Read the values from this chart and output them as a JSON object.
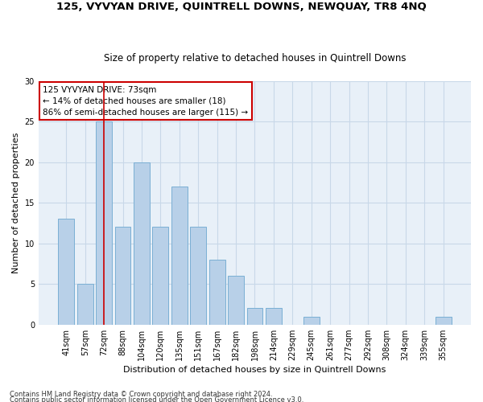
{
  "title": "125, VYVYAN DRIVE, QUINTRELL DOWNS, NEWQUAY, TR8 4NQ",
  "subtitle": "Size of property relative to detached houses in Quintrell Downs",
  "xlabel": "Distribution of detached houses by size in Quintrell Downs",
  "ylabel": "Number of detached properties",
  "categories": [
    "41sqm",
    "57sqm",
    "72sqm",
    "88sqm",
    "104sqm",
    "120sqm",
    "135sqm",
    "151sqm",
    "167sqm",
    "182sqm",
    "198sqm",
    "214sqm",
    "229sqm",
    "245sqm",
    "261sqm",
    "277sqm",
    "292sqm",
    "308sqm",
    "324sqm",
    "339sqm",
    "355sqm"
  ],
  "values": [
    13,
    5,
    25,
    12,
    20,
    12,
    17,
    12,
    8,
    6,
    2,
    2,
    0,
    1,
    0,
    0,
    0,
    0,
    0,
    0,
    1
  ],
  "bar_color": "#b8d0e8",
  "bar_edge_color": "#7aafd4",
  "property_line_x": 2.0,
  "annotation_text": "125 VYVYAN DRIVE: 73sqm\n← 14% of detached houses are smaller (18)\n86% of semi-detached houses are larger (115) →",
  "annotation_box_color": "#ffffff",
  "annotation_box_edge": "#cc0000",
  "vline_color": "#cc0000",
  "grid_color": "#c8d8e8",
  "bg_color": "#e8f0f8",
  "footer_line1": "Contains HM Land Registry data © Crown copyright and database right 2024.",
  "footer_line2": "Contains public sector information licensed under the Open Government Licence v3.0.",
  "ylim": [
    0,
    30
  ],
  "title_fontsize": 9.5,
  "subtitle_fontsize": 8.5,
  "ylabel_fontsize": 8,
  "xlabel_fontsize": 8,
  "tick_fontsize": 7,
  "annot_fontsize": 7.5,
  "footer_fontsize": 6
}
